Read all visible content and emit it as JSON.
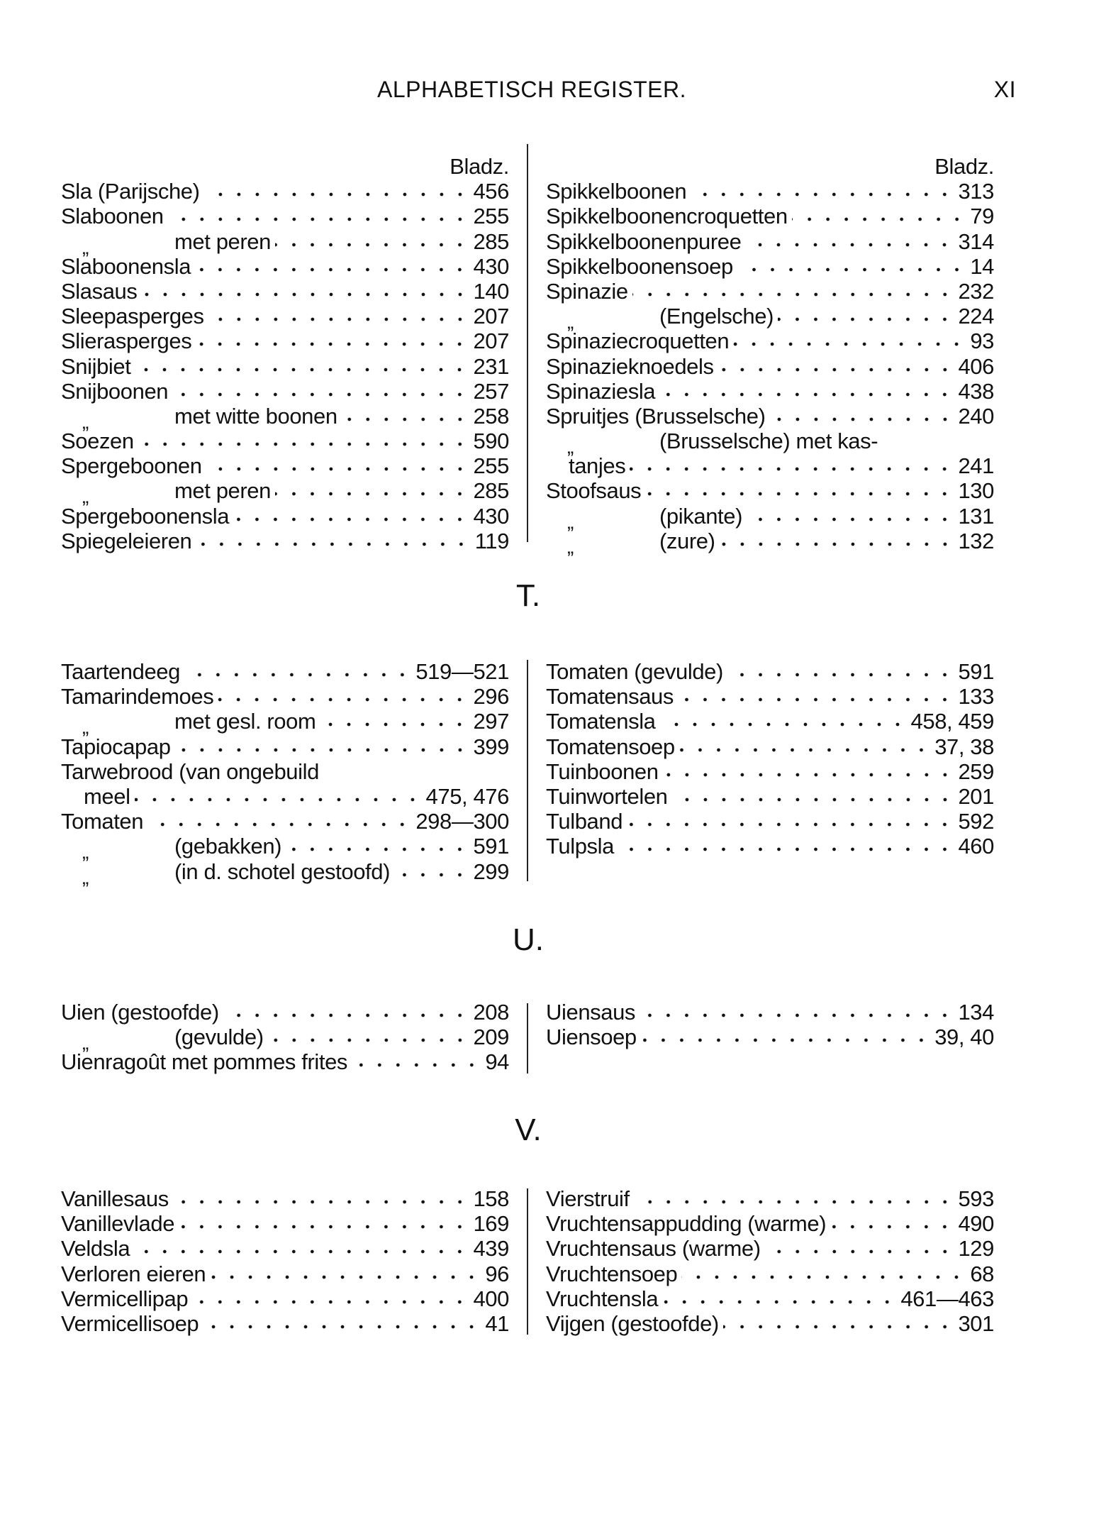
{
  "header": {
    "title": "ALPHABETISCH REGISTER.",
    "page": "XI"
  },
  "sections": [
    {
      "letter": "",
      "page_label": "Bladz.",
      "left": [
        {
          "label": "Sla (Parijsche)",
          "page": "456"
        },
        {
          "label": "Slaboonen",
          "page": "255"
        },
        {
          "ditto": "„",
          "label": "met peren",
          "page": "285"
        },
        {
          "label": "Slaboonensla",
          "page": "430"
        },
        {
          "label": "Slasaus",
          "page": "140"
        },
        {
          "label": "Sleepasperges",
          "page": "207"
        },
        {
          "label": "Slierasperges",
          "page": "207"
        },
        {
          "label": "Snijbiet",
          "page": "231"
        },
        {
          "label": "Snijboonen",
          "page": "257"
        },
        {
          "ditto": "„",
          "label": "met witte boonen",
          "page": "258"
        },
        {
          "label": "Soezen",
          "page": "590"
        },
        {
          "label": "Spergeboonen",
          "page": "255"
        },
        {
          "ditto": "„",
          "label": "met peren",
          "page": "285"
        },
        {
          "label": "Spergeboonensla",
          "page": "430"
        },
        {
          "label": "Spiegeleieren",
          "page": "119"
        }
      ],
      "right": [
        {
          "label": "Spikkelboonen",
          "page": "313"
        },
        {
          "label": "Spikkelboonencroquetten",
          "page": "79"
        },
        {
          "label": "Spikkelboonenpuree",
          "page": "314"
        },
        {
          "label": "Spikkelboonensoep",
          "page": "14"
        },
        {
          "label": "Spinazie",
          "page": "232"
        },
        {
          "ditto": "„",
          "label": "(Engelsche)",
          "page": "224"
        },
        {
          "label": "Spinaziecroquetten",
          "page": "93"
        },
        {
          "label": "Spinazieknoedels",
          "page": "406"
        },
        {
          "label": "Spinaziesla",
          "page": "438"
        },
        {
          "label": "Spruitjes (Brusselsche)",
          "page": "240"
        },
        {
          "ditto": "„",
          "label": "(Brusselsche) met kas-"
        },
        {
          "indent": true,
          "label": "tanjes",
          "page": "241"
        },
        {
          "label": "Stoofsaus",
          "page": "130"
        },
        {
          "ditto": "„",
          "label": "(pikante)",
          "page": "131"
        },
        {
          "ditto": "„",
          "label": "(zure)",
          "page": "132"
        }
      ]
    },
    {
      "letter": "T.",
      "left": [
        {
          "label": "Taartendeeg",
          "page": "519—521"
        },
        {
          "label": "Tamarindemoes",
          "page": "296"
        },
        {
          "ditto": "„",
          "label": "met gesl. room",
          "page": "297"
        },
        {
          "label": "Tapiocapap",
          "page": "399"
        },
        {
          "label": "Tarwebrood (van ongebuild"
        },
        {
          "indent": true,
          "label": "meel",
          "page": "475, 476"
        },
        {
          "label": "Tomaten",
          "page": "298—300"
        },
        {
          "ditto": "„",
          "label": "(gebakken)",
          "page": "591"
        },
        {
          "ditto": "„",
          "label": "(in d. schotel gestoofd)",
          "page": "299"
        }
      ],
      "right": [
        {
          "label": "Tomaten (gevulde)",
          "page": "591"
        },
        {
          "label": "Tomatensaus",
          "page": "133"
        },
        {
          "label": "Tomatensla",
          "page": "458, 459"
        },
        {
          "label": "Tomatensoep",
          "page": "37, 38"
        },
        {
          "label": "Tuinboonen",
          "page": "259"
        },
        {
          "label": "Tuinwortelen",
          "page": "201"
        },
        {
          "label": "Tulband",
          "page": "592"
        },
        {
          "label": "Tulpsla",
          "page": "460"
        }
      ]
    },
    {
      "letter": "U.",
      "left": [
        {
          "label": "Uien (gestoofde)",
          "page": "208"
        },
        {
          "ditto": "„",
          "label": "(gevulde)",
          "page": "209"
        },
        {
          "label": "Uienragoût met pommes frites",
          "page": "94"
        }
      ],
      "right": [
        {
          "label": "Uiensaus",
          "page": "134"
        },
        {
          "label": "Uiensoep",
          "page": "39, 40"
        }
      ]
    },
    {
      "letter": "V.",
      "left": [
        {
          "label": "Vanillesaus",
          "page": "158"
        },
        {
          "label": "Vanillevlade",
          "page": "169"
        },
        {
          "label": "Veldsla",
          "page": "439"
        },
        {
          "label": "Verloren eieren",
          "page": "96"
        },
        {
          "label": "Vermicellipap",
          "page": "400"
        },
        {
          "label": "Vermicellisoep",
          "page": "41"
        }
      ],
      "right": [
        {
          "label": "Vierstruif",
          "page": "593"
        },
        {
          "label": "Vruchtensappudding (warme)",
          "page": "490"
        },
        {
          "label": "Vruchtensaus (warme)",
          "page": "129"
        },
        {
          "label": "Vruchtensoep",
          "page": "68"
        },
        {
          "label": "Vruchtensla",
          "page": "461—463"
        },
        {
          "label": "Vijgen (gestoofde)",
          "page": "301"
        }
      ]
    }
  ]
}
